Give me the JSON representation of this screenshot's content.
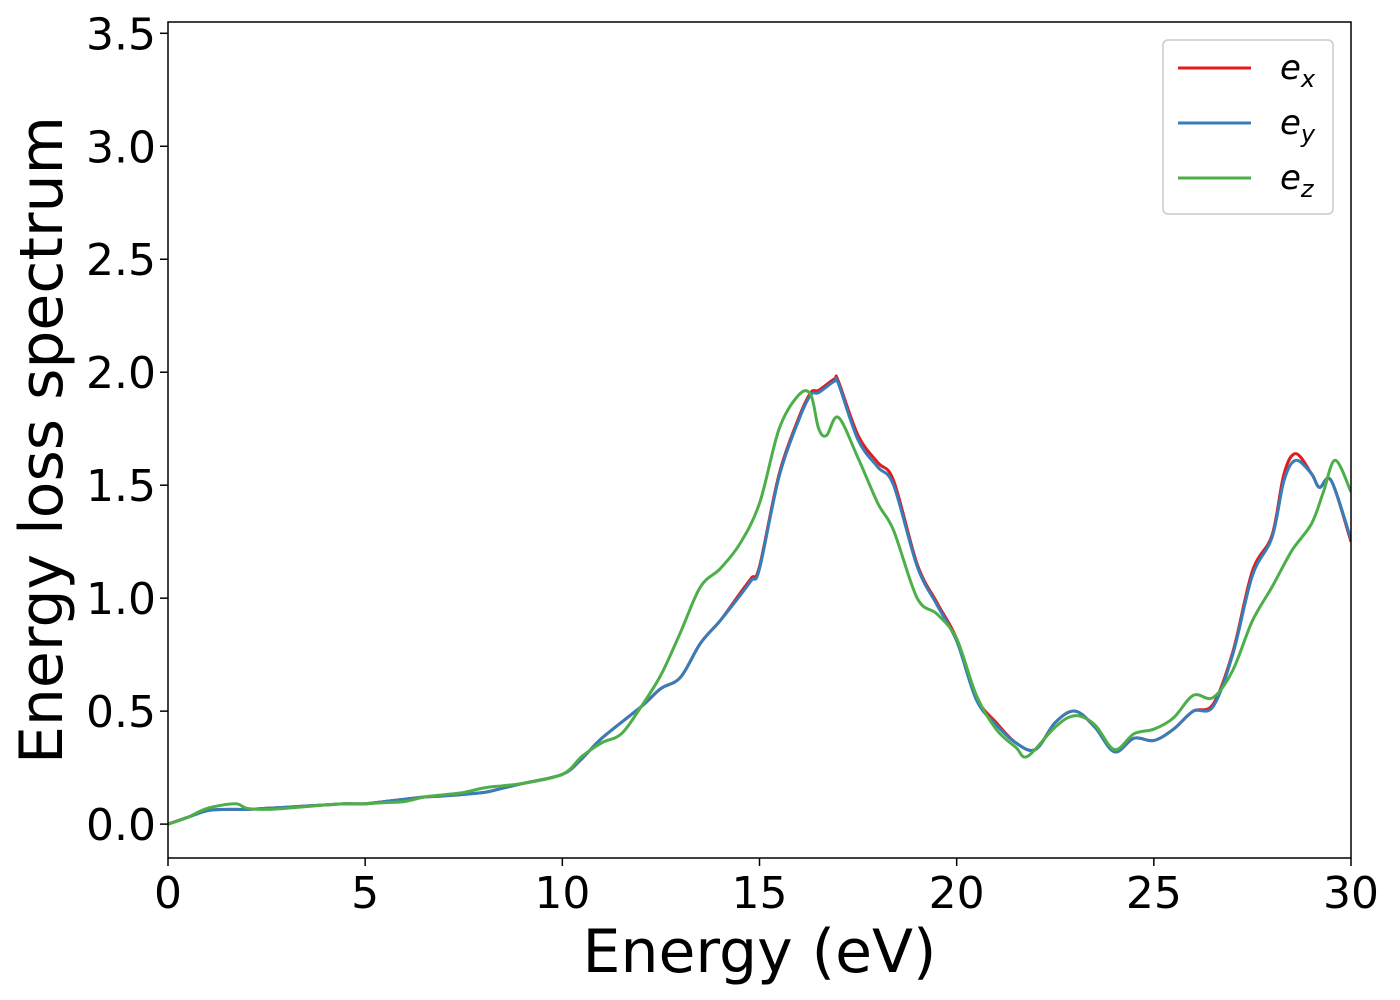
{
  "chart_data": {
    "type": "line",
    "title": "",
    "xlabel": "Energy (eV)",
    "ylabel": "Energy loss spectrum",
    "xlim": [
      0,
      30
    ],
    "ylim": [
      -0.15,
      3.55
    ],
    "xticks": [
      0,
      5,
      10,
      15,
      20,
      25,
      30
    ],
    "xtick_labels": [
      "0",
      "5",
      "10",
      "15",
      "20",
      "25",
      "30"
    ],
    "yticks": [
      0.0,
      0.5,
      1.0,
      1.5,
      2.0,
      2.5,
      3.0,
      3.5
    ],
    "ytick_labels": [
      "0.0",
      "0.5",
      "1.0",
      "1.5",
      "2.0",
      "2.5",
      "3.0",
      "3.5"
    ],
    "grid": false,
    "legend_position": "top-right",
    "series": [
      {
        "name": "e",
        "sub": "x",
        "color": "#e41a1c",
        "x": [
          0,
          0.5,
          1,
          1.5,
          2,
          2.5,
          3,
          4,
          4.5,
          5,
          5.5,
          6,
          6.5,
          7,
          8,
          8.5,
          9,
          10,
          10.5,
          11,
          12,
          12.5,
          13,
          13.5,
          14,
          14.5,
          14.8,
          15,
          15.5,
          16,
          16.3,
          16.5,
          16.9,
          17,
          17.5,
          18,
          18.4,
          19,
          19.5,
          20,
          20.5,
          21,
          21.5,
          22,
          22.5,
          23,
          23.5,
          24,
          24.5,
          25,
          25.5,
          26,
          26.5,
          27,
          27.5,
          28,
          28.3,
          28.6,
          29,
          29.2,
          29.5,
          30
        ],
        "y": [
          0,
          0.03,
          0.06,
          0.065,
          0.065,
          0.07,
          0.075,
          0.085,
          0.09,
          0.09,
          0.1,
          0.11,
          0.12,
          0.125,
          0.14,
          0.16,
          0.18,
          0.22,
          0.29,
          0.38,
          0.52,
          0.6,
          0.65,
          0.8,
          0.9,
          1.02,
          1.09,
          1.14,
          1.55,
          1.8,
          1.91,
          1.92,
          1.97,
          1.96,
          1.72,
          1.6,
          1.52,
          1.15,
          0.98,
          0.82,
          0.56,
          0.45,
          0.36,
          0.33,
          0.45,
          0.5,
          0.43,
          0.32,
          0.38,
          0.37,
          0.42,
          0.5,
          0.53,
          0.76,
          1.12,
          1.28,
          1.55,
          1.64,
          1.55,
          1.49,
          1.52,
          1.25
        ]
      },
      {
        "name": "e",
        "sub": "y",
        "color": "#377eb8",
        "x": [
          0,
          0.5,
          1,
          1.5,
          2,
          2.5,
          3,
          4,
          4.5,
          5,
          5.5,
          6,
          6.5,
          7,
          8,
          8.5,
          9,
          10,
          10.5,
          11,
          12,
          12.5,
          13,
          13.5,
          14,
          14.5,
          14.8,
          15,
          15.5,
          16,
          16.3,
          16.5,
          16.9,
          17,
          17.5,
          18,
          18.4,
          19,
          19.5,
          20,
          20.5,
          21,
          21.5,
          22,
          22.5,
          23,
          23.5,
          24,
          24.5,
          25,
          25.5,
          26,
          26.5,
          27,
          27.5,
          28,
          28.3,
          28.6,
          29,
          29.2,
          29.5,
          30
        ],
        "y": [
          0,
          0.03,
          0.06,
          0.065,
          0.065,
          0.07,
          0.075,
          0.085,
          0.09,
          0.09,
          0.1,
          0.11,
          0.12,
          0.125,
          0.14,
          0.16,
          0.18,
          0.22,
          0.29,
          0.38,
          0.52,
          0.6,
          0.65,
          0.8,
          0.9,
          1.01,
          1.08,
          1.13,
          1.54,
          1.79,
          1.9,
          1.91,
          1.96,
          1.95,
          1.7,
          1.58,
          1.5,
          1.14,
          0.97,
          0.81,
          0.55,
          0.44,
          0.36,
          0.33,
          0.45,
          0.5,
          0.43,
          0.32,
          0.38,
          0.37,
          0.42,
          0.5,
          0.52,
          0.75,
          1.1,
          1.27,
          1.52,
          1.61,
          1.55,
          1.49,
          1.52,
          1.26
        ]
      },
      {
        "name": "e",
        "sub": "z",
        "color": "#4daf4a",
        "x": [
          0,
          0.5,
          1,
          1.7,
          2,
          2.5,
          3,
          4,
          4.5,
          5,
          5.5,
          6,
          6.5,
          7,
          7.5,
          8,
          8.5,
          9,
          10,
          10.5,
          11,
          11.5,
          12,
          12.5,
          13,
          13.5,
          14,
          14.5,
          15,
          15.5,
          16,
          16.3,
          16.5,
          16.7,
          17,
          17.5,
          18,
          18.4,
          19,
          19.5,
          20,
          20.5,
          21,
          21.5,
          21.8,
          22.5,
          23,
          23.5,
          24,
          24.5,
          25,
          25.5,
          26,
          26.5,
          27,
          27.5,
          28,
          28.5,
          29,
          29.3,
          29.6,
          30
        ],
        "y": [
          0,
          0.03,
          0.07,
          0.09,
          0.07,
          0.065,
          0.07,
          0.085,
          0.09,
          0.09,
          0.095,
          0.1,
          0.12,
          0.13,
          0.14,
          0.16,
          0.17,
          0.18,
          0.22,
          0.3,
          0.36,
          0.4,
          0.52,
          0.66,
          0.85,
          1.05,
          1.13,
          1.24,
          1.42,
          1.75,
          1.9,
          1.9,
          1.75,
          1.72,
          1.8,
          1.62,
          1.42,
          1.3,
          1.0,
          0.93,
          0.82,
          0.57,
          0.42,
          0.34,
          0.3,
          0.43,
          0.48,
          0.44,
          0.33,
          0.4,
          0.42,
          0.47,
          0.57,
          0.56,
          0.68,
          0.9,
          1.05,
          1.21,
          1.33,
          1.47,
          1.61,
          1.47
        ]
      }
    ]
  }
}
